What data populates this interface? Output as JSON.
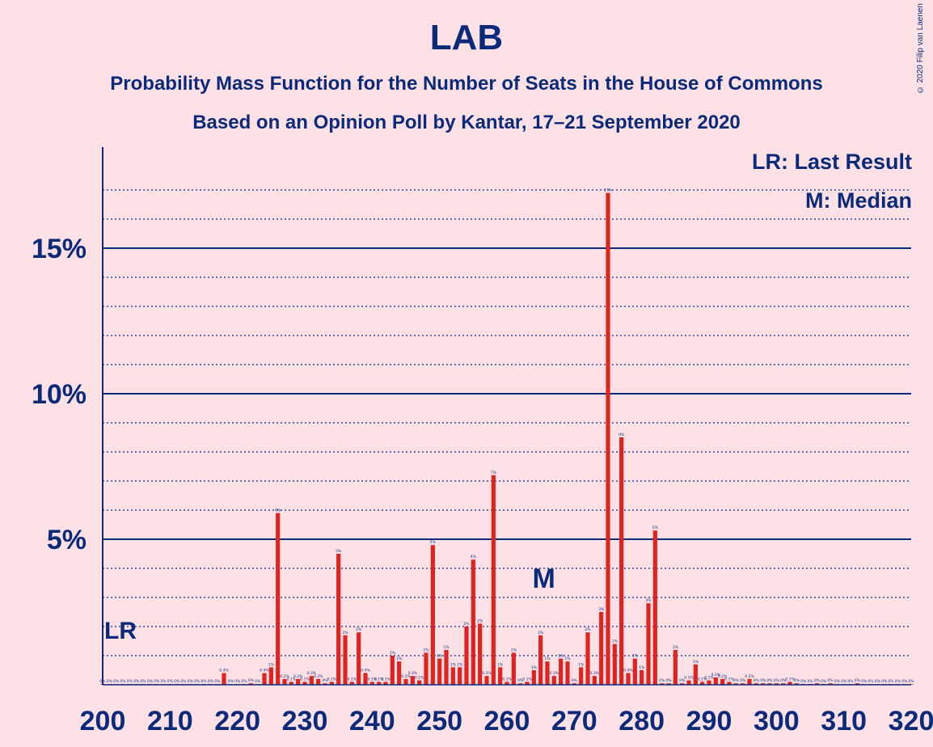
{
  "header": {
    "title": "LAB",
    "subtitle1": "Probability Mass Function for the Number of Seats in the House of Commons",
    "subtitle2": "Based on an Opinion Poll by Kantar, 17–21 September 2020",
    "credit": "© 2020 Filip van Laenen"
  },
  "legend": {
    "last_result": "LR: Last Result",
    "median": "M: Median"
  },
  "colors": {
    "background": "#FDE1E6",
    "bar": "#E0231F",
    "axis": "#0B2A7A"
  },
  "chart_data": {
    "type": "bar",
    "x_start": 200,
    "x_end": 320,
    "x_ticks": [
      "200",
      "210",
      "220",
      "230",
      "240",
      "250",
      "260",
      "270",
      "280",
      "290",
      "300",
      "310",
      "320"
    ],
    "y_ticks": [
      "5%",
      "10%",
      "15%"
    ],
    "ylim": [
      0,
      18.5
    ],
    "last_result": {
      "seat": 202,
      "label": "LR"
    },
    "median": {
      "seat": 265,
      "label": "M"
    },
    "series": [
      {
        "x": [
          200,
          201,
          202,
          203,
          204,
          205,
          206,
          207,
          208,
          209,
          210,
          211,
          212,
          213,
          214,
          215,
          216,
          217,
          218,
          219,
          220,
          221,
          222,
          223,
          224,
          225,
          226,
          227,
          228,
          229,
          230,
          231,
          232,
          233,
          234,
          235,
          236,
          237,
          238,
          239,
          240,
          241,
          242,
          243,
          244,
          245,
          246,
          247,
          248,
          249,
          250,
          251,
          252,
          253,
          254,
          255,
          256,
          257,
          258,
          259,
          260,
          261,
          262,
          263,
          264,
          265,
          266,
          267,
          268,
          269,
          270,
          271,
          272,
          273,
          274,
          275,
          276,
          277,
          278,
          279,
          280,
          281,
          282,
          283,
          284,
          285,
          286,
          287,
          288,
          289,
          290,
          291,
          292,
          293,
          294,
          295,
          296,
          297,
          298,
          299,
          300,
          301,
          302,
          303,
          304,
          305,
          306,
          307,
          308,
          309,
          310,
          311,
          312,
          313,
          314,
          315,
          316,
          317,
          318,
          319,
          320
        ],
        "values": [
          0,
          0,
          0,
          0,
          0.01,
          0,
          0,
          0,
          0,
          0,
          0,
          0,
          0,
          0,
          0,
          0,
          0,
          0.02,
          0.4,
          0.02,
          0.02,
          0.02,
          0.05,
          0.02,
          0.4,
          0.6,
          5.9,
          0.2,
          0.1,
          0.2,
          0.1,
          0.3,
          0.2,
          0.05,
          0.1,
          4.5,
          1.7,
          0.1,
          1.8,
          0.4,
          0.1,
          0.1,
          0.1,
          1.0,
          0.8,
          0.2,
          0.3,
          0.15,
          1.1,
          4.8,
          0.9,
          1.2,
          0.6,
          0.6,
          2.0,
          4.3,
          2.1,
          0.3,
          7.2,
          0.6,
          0.1,
          1.1,
          0.05,
          0.1,
          0.5,
          1.7,
          0.8,
          0.3,
          0.9,
          0.8,
          0.05,
          0.6,
          1.8,
          0.3,
          2.5,
          16.9,
          1.4,
          8.5,
          0.4,
          0.9,
          0.5,
          2.8,
          5.3,
          0.05,
          0.05,
          1.2,
          0.05,
          0.15,
          0.7,
          0.1,
          0.15,
          0.25,
          0.2,
          0.1,
          0.05,
          0.05,
          0.2,
          0.05,
          0.05,
          0.05,
          0.05,
          0.05,
          0.1,
          0.05,
          0.03,
          0.03,
          0.05,
          0.03,
          0.05,
          0.02,
          0.02,
          0.02,
          0.05,
          0.02,
          0.02,
          0.02,
          0.02,
          0.02,
          0.02,
          0.02,
          0.02
        ]
      }
    ]
  }
}
